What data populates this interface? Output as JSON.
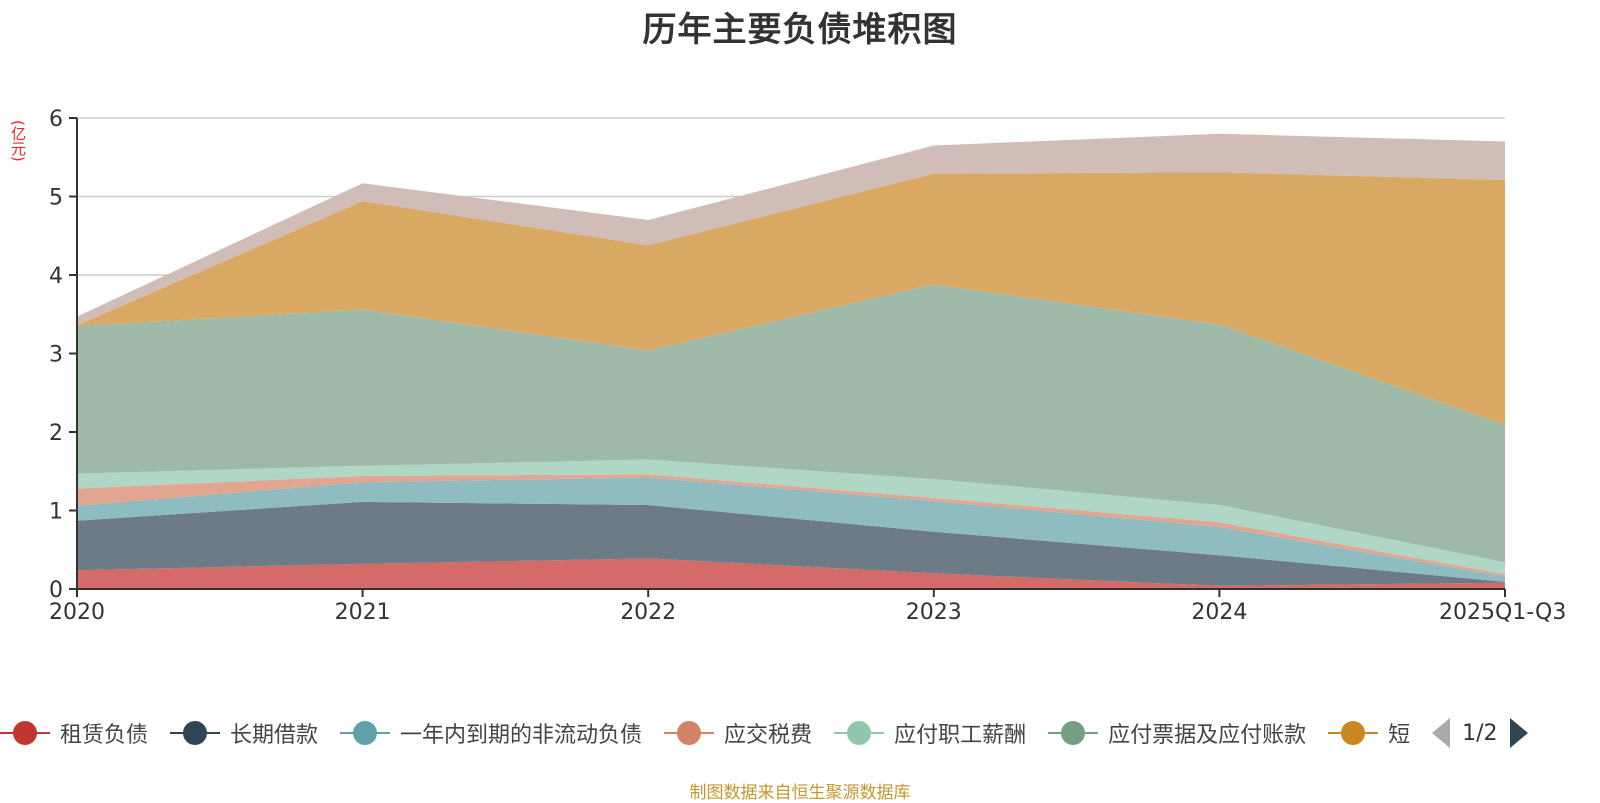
{
  "title": "历年主要负债堆积图",
  "unit_label": "(亿元)",
  "source_note": "制图数据来自恒生聚源数据库",
  "legend_pager": {
    "text": "1/2"
  },
  "chart_data": {
    "type": "area",
    "stacked": true,
    "title": "历年主要负债堆积图",
    "ylabel": "(亿元)",
    "xlabel": "",
    "ylim": [
      0,
      6
    ],
    "yticks": [
      0,
      1,
      2,
      3,
      4,
      5,
      6
    ],
    "grid": true,
    "legend_position": "bottom",
    "categories": [
      "2020",
      "2021",
      "2022",
      "2023",
      "2024",
      "2025Q1-Q3"
    ],
    "series": [
      {
        "name": "租赁负债",
        "legend_color": "#c23531",
        "fill": "#d46b69",
        "values": [
          0.24,
          0.32,
          0.39,
          0.2,
          0.04,
          0.08
        ]
      },
      {
        "name": "长期借款",
        "legend_color": "#2f4554",
        "fill": "#6d7b86",
        "values": [
          0.63,
          0.79,
          0.68,
          0.53,
          0.39,
          0.01
        ]
      },
      {
        "name": "一年内到期的非流动负债",
        "legend_color": "#61a0a8",
        "fill": "#8fbcc1",
        "values": [
          0.19,
          0.25,
          0.35,
          0.39,
          0.36,
          0.07
        ]
      },
      {
        "name": "应交税费",
        "legend_color": "#d48265",
        "fill": "#e1a592",
        "values": [
          0.22,
          0.08,
          0.04,
          0.04,
          0.06,
          0.03
        ]
      },
      {
        "name": "应付职工薪酬",
        "legend_color": "#91c7ae",
        "fill": "#b0d7c5",
        "values": [
          0.19,
          0.13,
          0.19,
          0.24,
          0.22,
          0.15
        ]
      },
      {
        "name": "应付票据及应付账款",
        "legend_color": "#749f83",
        "fill": "#9eb9a7",
        "values": [
          1.88,
          1.99,
          1.39,
          2.48,
          2.3,
          1.75
        ]
      },
      {
        "name": "短",
        "legend_color": "#ca8622",
        "fill": "#d9a963",
        "values": [
          0.01,
          1.38,
          1.34,
          1.41,
          1.94,
          3.12
        ]
      },
      {
        "name": "",
        "legend_color": "#bda29a",
        "fill": "#d1bdb8",
        "values": [
          0.11,
          0.23,
          0.32,
          0.36,
          0.49,
          0.49
        ]
      }
    ]
  }
}
